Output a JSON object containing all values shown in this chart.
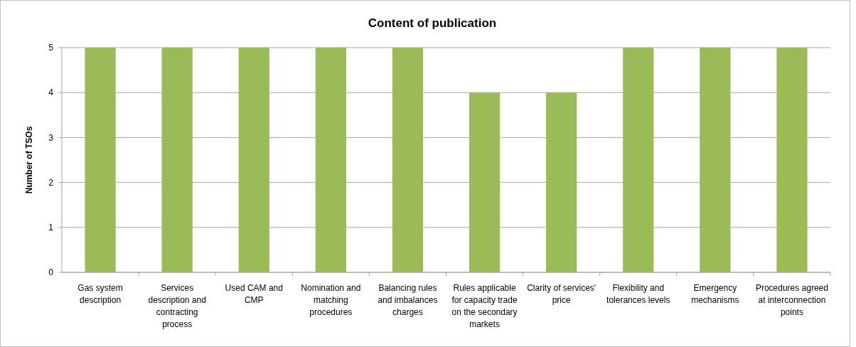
{
  "chart_data": {
    "type": "bar",
    "title": "Content of publication",
    "ylabel": "Number of TSOs",
    "categories": [
      "Gas system description",
      "Services description and contracting process",
      "Used CAM and CMP",
      "Nomination and matching procedures",
      "Balancing rules and imbalances charges",
      "Rules applicable for capacity trade on the secondary markets",
      "Clarity of services' price",
      "Flexibility and tolerances levels",
      "Emergency mechanisms",
      "Procedures agreed at interconnection points"
    ],
    "values": [
      5,
      5,
      5,
      5,
      5,
      4,
      4,
      5,
      5,
      5
    ],
    "color": "#9bbb59",
    "ylim": [
      0,
      5
    ],
    "yticks": [
      0,
      1,
      2,
      3,
      4,
      5
    ],
    "grid": "y"
  }
}
